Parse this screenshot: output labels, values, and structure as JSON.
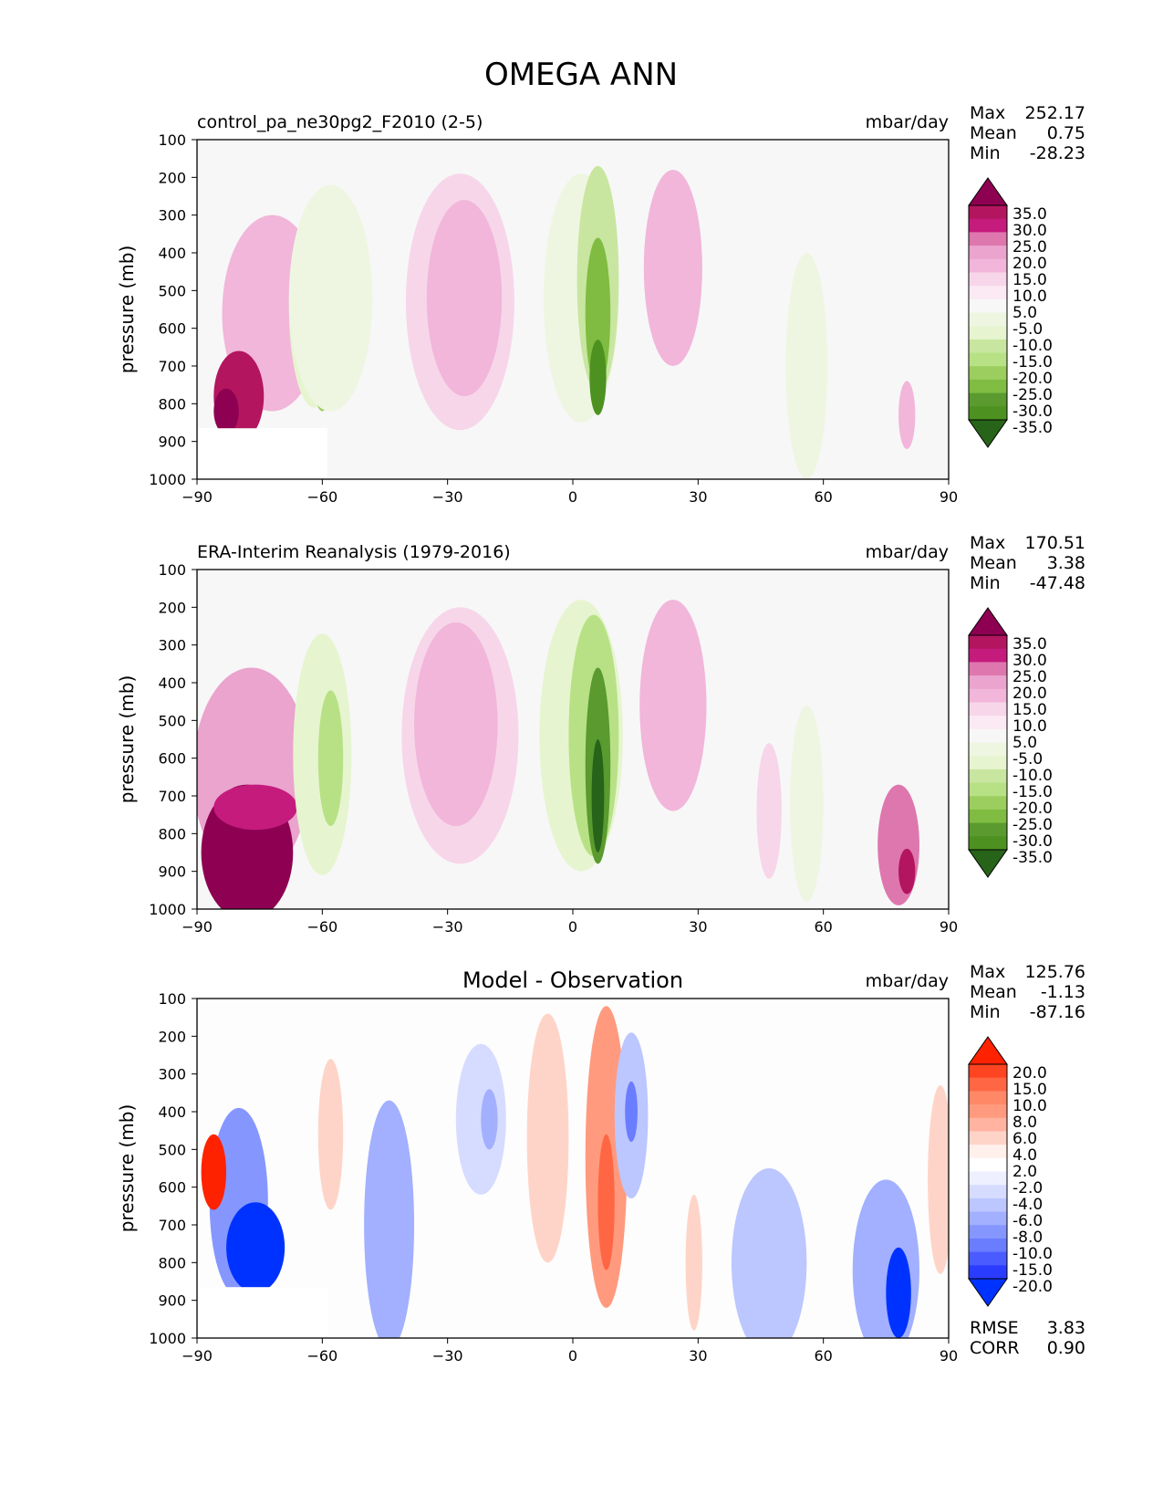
{
  "figure": {
    "title": "OMEGA ANN"
  },
  "chart_data": [
    {
      "type": "contour",
      "title": "control_pa_ne30pg2_F2010 (2-5)",
      "units": "mbar/day",
      "xlabel": "",
      "ylabel": "pressure (mb)",
      "xlim": [
        -90,
        90
      ],
      "ylim": [
        1000,
        100
      ],
      "x_ticks": [
        "−90",
        "−60",
        "−30",
        "0",
        "30",
        "60",
        "90"
      ],
      "y_ticks": [
        "100",
        "200",
        "300",
        "400",
        "500",
        "600",
        "700",
        "800",
        "900",
        "1000"
      ],
      "stats": [
        {
          "label": "Max",
          "value": "252.17"
        },
        {
          "label": "Mean",
          "value": "0.75"
        },
        {
          "label": "Min",
          "value": "-28.23"
        }
      ],
      "colorbar": {
        "labels": [
          "35.0",
          "30.0",
          "25.0",
          "20.0",
          "15.0",
          "10.0",
          "5.0",
          "-5.0",
          "-10.0",
          "-15.0",
          "-20.0",
          "-25.0",
          "-30.0",
          "-35.0"
        ],
        "colors": [
          "#8e0152",
          "#b3155f",
          "#c51b7d",
          "#de77ae",
          "#eaa4cd",
          "#f1b6da",
          "#f7d6ea",
          "#fbe9f3",
          "#f7f7f7",
          "#eef6e2",
          "#e6f5d0",
          "#c8e6a0",
          "#b8e186",
          "#9ccd5f",
          "#7fbc41",
          "#5a9a2f",
          "#4d9221",
          "#276419"
        ]
      }
    },
    {
      "type": "contour",
      "title": "ERA-Interim Reanalysis (1979-2016)",
      "units": "mbar/day",
      "xlabel": "",
      "ylabel": "pressure (mb)",
      "xlim": [
        -90,
        90
      ],
      "ylim": [
        1000,
        100
      ],
      "x_ticks": [
        "−90",
        "−60",
        "−30",
        "0",
        "30",
        "60",
        "90"
      ],
      "y_ticks": [
        "100",
        "200",
        "300",
        "400",
        "500",
        "600",
        "700",
        "800",
        "900",
        "1000"
      ],
      "stats": [
        {
          "label": "Max",
          "value": "170.51"
        },
        {
          "label": "Mean",
          "value": "3.38"
        },
        {
          "label": "Min",
          "value": "-47.48"
        }
      ],
      "colorbar": {
        "labels": [
          "35.0",
          "30.0",
          "25.0",
          "20.0",
          "15.0",
          "10.0",
          "5.0",
          "-5.0",
          "-10.0",
          "-15.0",
          "-20.0",
          "-25.0",
          "-30.0",
          "-35.0"
        ],
        "colors": [
          "#8e0152",
          "#b3155f",
          "#c51b7d",
          "#de77ae",
          "#eaa4cd",
          "#f1b6da",
          "#f7d6ea",
          "#fbe9f3",
          "#f7f7f7",
          "#eef6e2",
          "#e6f5d0",
          "#c8e6a0",
          "#b8e186",
          "#9ccd5f",
          "#7fbc41",
          "#5a9a2f",
          "#4d9221",
          "#276419"
        ]
      }
    },
    {
      "type": "contour",
      "title": "Model - Observation",
      "units": "mbar/day",
      "xlabel": "",
      "ylabel": "pressure (mb)",
      "xlim": [
        -90,
        90
      ],
      "ylim": [
        1000,
        100
      ],
      "x_ticks": [
        "−90",
        "−60",
        "−30",
        "0",
        "30",
        "60",
        "90"
      ],
      "y_ticks": [
        "100",
        "200",
        "300",
        "400",
        "500",
        "600",
        "700",
        "800",
        "900",
        "1000"
      ],
      "stats": [
        {
          "label": "Max",
          "value": "125.76"
        },
        {
          "label": "Mean",
          "value": "-1.13"
        },
        {
          "label": "Min",
          "value": "-87.16"
        }
      ],
      "metrics": [
        {
          "label": "RMSE",
          "value": "3.83"
        },
        {
          "label": "CORR",
          "value": "0.90"
        }
      ],
      "colorbar": {
        "labels": [
          "20.0",
          "15.0",
          "10.0",
          "8.0",
          "6.0",
          "4.0",
          "2.0",
          "-2.0",
          "-4.0",
          "-6.0",
          "-8.0",
          "-10.0",
          "-15.0",
          "-20.0"
        ],
        "colors": [
          "#ff2200",
          "#ff4422",
          "#ff6644",
          "#ff8866",
          "#ff9a7e",
          "#ffb3a0",
          "#ffd4c8",
          "#fff0ec",
          "#ffffff",
          "#eef0ff",
          "#d6dcff",
          "#bcc6ff",
          "#a2b0ff",
          "#8596ff",
          "#6a7dff",
          "#4a5cff",
          "#2a3cff",
          "#0032ff"
        ]
      }
    }
  ]
}
